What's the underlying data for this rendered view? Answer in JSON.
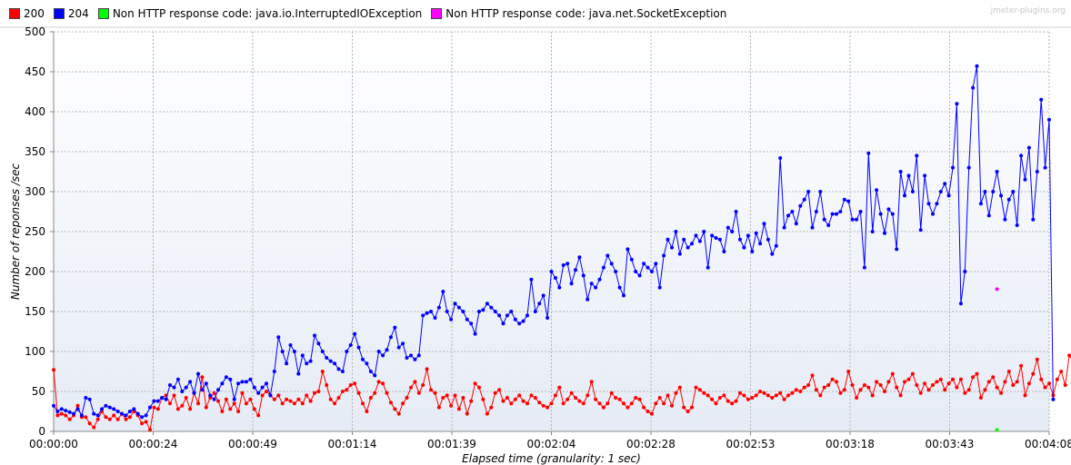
{
  "watermark": "jmeter-plugins.org",
  "chart_data": {
    "type": "line",
    "xlabel": "Elapsed time (granularity: 1 sec)",
    "ylabel": "Number of reponses /sec",
    "ylim": [
      0,
      500
    ],
    "xlim_sec": [
      0,
      248
    ],
    "yticks": [
      0,
      50,
      100,
      150,
      200,
      250,
      300,
      350,
      400,
      450,
      500
    ],
    "xticks": [
      "00:00:00",
      "00:00:24",
      "00:00:49",
      "00:01:14",
      "00:01:39",
      "00:02:04",
      "00:02:28",
      "00:02:53",
      "00:03:18",
      "00:03:43",
      "00:04:08"
    ],
    "grid": true,
    "legend_position": "top",
    "series": [
      {
        "name": "200",
        "color": "#ff0000",
        "values": [
          77,
          20,
          22,
          20,
          15,
          20,
          32,
          18,
          18,
          10,
          5,
          15,
          25,
          18,
          15,
          20,
          15,
          22,
          15,
          18,
          25,
          20,
          10,
          12,
          2,
          30,
          28,
          42,
          45,
          35,
          45,
          28,
          32,
          42,
          28,
          48,
          35,
          68,
          30,
          42,
          48,
          38,
          25,
          40,
          28,
          35,
          25,
          48,
          35,
          40,
          28,
          20,
          45,
          50,
          45,
          40,
          45,
          35,
          40,
          38,
          35,
          40,
          35,
          45,
          38,
          48,
          50,
          75,
          58,
          40,
          35,
          42,
          50,
          52,
          58,
          60,
          48,
          35,
          25,
          42,
          48,
          62,
          60,
          48,
          36,
          28,
          22,
          35,
          42,
          55,
          62,
          48,
          58,
          78,
          52,
          48,
          30,
          42,
          45,
          32,
          45,
          28,
          42,
          22,
          38,
          60,
          55,
          40,
          22,
          30,
          48,
          52,
          38,
          42,
          35,
          40,
          45,
          38,
          35,
          45,
          42,
          36,
          32,
          30,
          35,
          45,
          55,
          35,
          40,
          48,
          42,
          38,
          35,
          45,
          62,
          40,
          35,
          30,
          35,
          48,
          42,
          40,
          35,
          30,
          35,
          42,
          40,
          30,
          25,
          22,
          35,
          42,
          35,
          45,
          32,
          48,
          55,
          30,
          25,
          30,
          55,
          52,
          48,
          45,
          40,
          35,
          42,
          45,
          38,
          35,
          38,
          48,
          45,
          40,
          42,
          45,
          50,
          48,
          45,
          42,
          45,
          48,
          40,
          45,
          48,
          52,
          50,
          55,
          58,
          70,
          52,
          45,
          55,
          58,
          65,
          62,
          48,
          52,
          75,
          58,
          42,
          52,
          58,
          55,
          45,
          62,
          58,
          50,
          62,
          72,
          55,
          45,
          62,
          65,
          72,
          58,
          48,
          60,
          52,
          58,
          62,
          65,
          52,
          60,
          65,
          55,
          65,
          48,
          52,
          68,
          72,
          42,
          52,
          62,
          68,
          55,
          48,
          62,
          75,
          58,
          62,
          82,
          45,
          60,
          72,
          90,
          65,
          55,
          60,
          45,
          65,
          75,
          58,
          95,
          88,
          115,
          40
        ]
      },
      {
        "name": "204",
        "color": "#0000ff",
        "values": [
          32,
          25,
          28,
          26,
          24,
          22,
          28,
          20,
          42,
          40,
          22,
          20,
          28,
          32,
          30,
          28,
          25,
          22,
          20,
          25,
          28,
          22,
          18,
          20,
          30,
          38,
          38,
          42,
          40,
          58,
          55,
          65,
          50,
          55,
          62,
          48,
          72,
          52,
          60,
          45,
          40,
          52,
          60,
          68,
          65,
          40,
          60,
          62,
          62,
          65,
          55,
          48,
          55,
          60,
          45,
          75,
          118,
          100,
          85,
          108,
          100,
          72,
          95,
          85,
          88,
          120,
          110,
          100,
          92,
          88,
          85,
          78,
          75,
          100,
          108,
          122,
          105,
          90,
          85,
          75,
          70,
          100,
          95,
          102,
          118,
          130,
          105,
          110,
          92,
          95,
          90,
          95,
          145,
          148,
          150,
          142,
          155,
          175,
          150,
          140,
          160,
          155,
          150,
          140,
          135,
          122,
          150,
          152,
          160,
          155,
          150,
          145,
          135,
          145,
          150,
          140,
          135,
          138,
          145,
          190,
          150,
          160,
          170,
          142,
          200,
          192,
          180,
          208,
          210,
          185,
          202,
          218,
          195,
          165,
          185,
          180,
          190,
          205,
          220,
          210,
          200,
          180,
          170,
          228,
          215,
          200,
          195,
          210,
          205,
          200,
          210,
          180,
          220,
          240,
          230,
          250,
          222,
          240,
          230,
          235,
          245,
          238,
          250,
          205,
          245,
          242,
          240,
          225,
          255,
          250,
          275,
          240,
          230,
          245,
          225,
          248,
          235,
          260,
          240,
          222,
          232,
          342,
          255,
          270,
          275,
          260,
          282,
          290,
          300,
          255,
          275,
          300,
          265,
          258,
          272,
          272,
          275,
          290,
          288,
          265,
          265,
          275,
          205,
          348,
          250,
          302,
          272,
          248,
          278,
          272,
          228,
          325,
          295,
          320,
          300,
          345,
          252,
          320,
          285,
          272,
          285,
          300,
          310,
          295,
          330,
          410,
          160,
          200,
          330,
          430,
          457,
          285,
          300,
          270,
          300,
          325,
          295,
          265,
          290,
          300,
          258,
          345,
          315,
          355,
          265,
          325,
          415,
          330,
          390,
          40
        ]
      },
      {
        "name": "Non HTTP response code: java.io.InterruptedIOException",
        "color": "#00ff00",
        "points": [
          [
            235,
            2
          ]
        ]
      },
      {
        "name": "Non HTTP response code: java.net.SocketException",
        "color": "#ff00ff",
        "points": [
          [
            235,
            178
          ]
        ]
      }
    ]
  }
}
